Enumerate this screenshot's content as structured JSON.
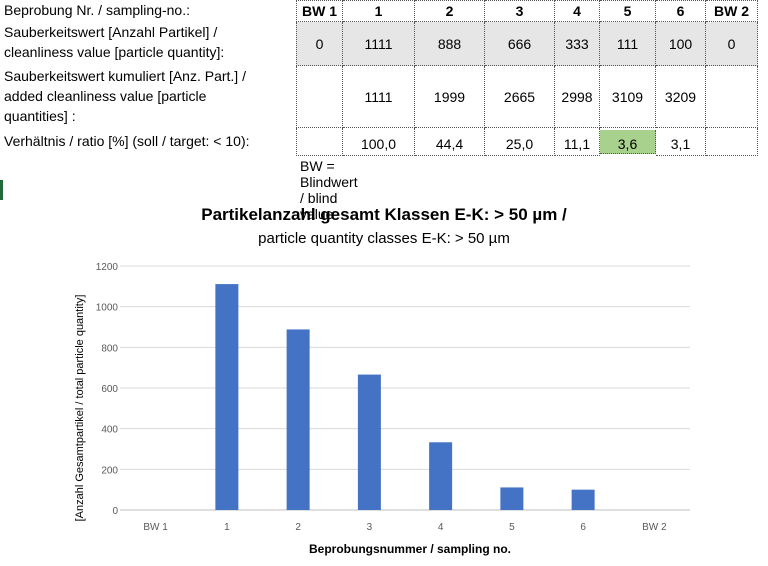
{
  "table": {
    "headers": [
      "BW 1",
      "1",
      "2",
      "3",
      "4",
      "5",
      "6",
      "BW 2"
    ],
    "row_labels": {
      "header": "Beprobung Nr. / sampling-no.:",
      "row1": [
        "Sauberkeitswert [Anzahl Partikel] /",
        "cleanliness value [particle quantity]:"
      ],
      "row2": [
        "Sauberkeitswert kumuliert [Anz. Part.] /",
        "added cleanliness value [particle",
        "quantities] :"
      ],
      "row3": "Verhältnis / ratio [%] (soll / target: < 10):"
    },
    "cleanliness": [
      "0",
      "1111",
      "888",
      "666",
      "333",
      "111",
      "100",
      "0"
    ],
    "added": [
      "",
      "1111",
      "1999",
      "2665",
      "2998",
      "3109",
      "3209",
      ""
    ],
    "ratio": [
      "",
      "100,0",
      "44,4",
      "25,0",
      "11,1",
      "3,6",
      "3,1",
      ""
    ],
    "highlight_color": "#a9d18e",
    "note": "BW = Blindwert / blind value"
  },
  "chart_data": {
    "type": "bar",
    "title": "Partikelanzahl gesamt Klassen E-K:  > 50 µm /",
    "subtitle": "particle quantity classes E-K: > 50 µm",
    "categories": [
      "BW 1",
      "1",
      "2",
      "3",
      "4",
      "5",
      "6",
      "BW 2"
    ],
    "values": [
      0,
      1111,
      888,
      666,
      333,
      111,
      100,
      0
    ],
    "xlabel": "Beprobungsnummer / sampling no.",
    "ylabel": "[Anzahl Gesamtpartikel / total particle quantity]",
    "ylim": [
      0,
      1200
    ],
    "yticks": [
      0,
      200,
      400,
      600,
      800,
      1000,
      1200
    ],
    "grid": true,
    "bar_color": "#4472c4"
  }
}
